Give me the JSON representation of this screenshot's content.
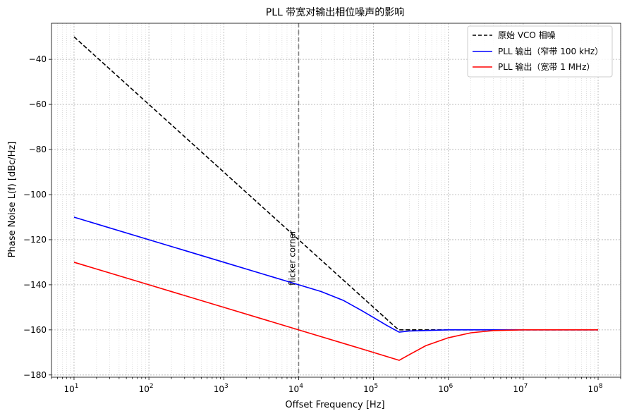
{
  "chart_data": {
    "type": "line",
    "title": "PLL 带宽对输出相位噪声的影响",
    "xlabel": "Offset Frequency [Hz]",
    "ylabel": "Phase Noise L(f) [dBc/Hz]",
    "xscale": "log",
    "xlim": [
      5,
      200000000
    ],
    "ylim": [
      -181,
      -24
    ],
    "yticks": [
      -40,
      -60,
      -80,
      -100,
      -120,
      -140,
      -160,
      -180
    ],
    "ytick_labels": [
      "−40",
      "−60",
      "−80",
      "−100",
      "−120",
      "−140",
      "−160",
      "−180"
    ],
    "xtick_exponents": [
      "1",
      "2",
      "3",
      "4",
      "5",
      "6",
      "7",
      "8"
    ],
    "xtick_values": [
      10,
      100,
      1000,
      10000,
      100000,
      1000000,
      10000000,
      100000000
    ],
    "grid": true,
    "legend_position": "top-right",
    "annotation": {
      "text": "flicker corner",
      "x": 10000,
      "label_y": -128
    },
    "series": [
      {
        "name": "原始 VCO 相噪",
        "color": "#000000",
        "style": "dashed",
        "x": [
          10,
          100,
          1000,
          10000,
          100000,
          200000,
          220000,
          300000,
          1000000,
          10000000,
          100000000
        ],
        "y": [
          -30,
          -60,
          -90,
          -120,
          -150,
          -159,
          -160,
          -160,
          -160,
          -160,
          -160
        ]
      },
      {
        "name": "PLL 输出（窄带 100 kHz）",
        "color": "#0000ff",
        "style": "solid",
        "x": [
          10,
          100,
          1000,
          10000,
          20000,
          40000,
          70000,
          100000,
          150000,
          220000,
          300000,
          1000000,
          10000000,
          100000000
        ],
        "y": [
          -110,
          -120,
          -130,
          -140,
          -143,
          -147,
          -151.5,
          -154.5,
          -158,
          -161,
          -160.5,
          -160,
          -160,
          -160
        ]
      },
      {
        "name": "PLL 输出（宽带 1 MHz）",
        "color": "#ff0000",
        "style": "solid",
        "x": [
          10,
          100,
          1000,
          10000,
          100000,
          220000,
          300000,
          500000,
          1000000,
          2000000,
          4000000,
          10000000,
          100000000
        ],
        "y": [
          -130,
          -140,
          -150,
          -160,
          -170,
          -173.5,
          -171,
          -167,
          -163.5,
          -161.3,
          -160.3,
          -160,
          -160
        ]
      }
    ]
  }
}
